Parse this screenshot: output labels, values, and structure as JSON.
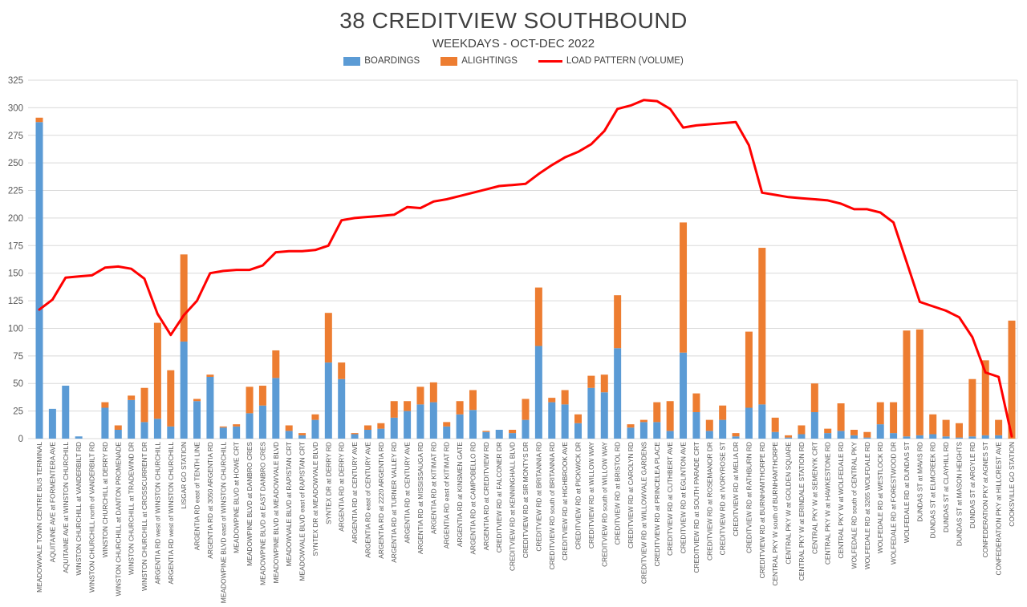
{
  "chart": {
    "title": "38 CREDITVIEW SOUTHBOUND",
    "subtitle": "WEEKDAYS - OCT-DEC 2022",
    "legend": [
      {
        "label": "BOARDINGS",
        "color": "#5B9BD5",
        "swatch": "box"
      },
      {
        "label": "ALIGHTINGS",
        "color": "#ED7D31",
        "swatch": "box"
      },
      {
        "label": "LOAD PATTERN (VOLUME)",
        "color": "#FF0000",
        "swatch": "line"
      }
    ]
  },
  "chart_data": {
    "type": "bar",
    "stacked": true,
    "title": "38 CREDITVIEW SOUTHBOUND",
    "subtitle": "WEEKDAYS - OCT-DEC 2022",
    "xlabel": "",
    "ylabel": "",
    "ylim": [
      0,
      325
    ],
    "ytick_step": 25,
    "grid": true,
    "legend_position": "top",
    "colors": {
      "boardings": "#5B9BD5",
      "alightings": "#ED7D31",
      "load": "#FF0000",
      "gridline": "#D9D9D9",
      "axis_text": "#595959"
    },
    "categories": [
      "MEADOWVALE TOWN CENTRE BUS TERMINAL",
      "AQUITAINE AVE at FORMENTERA AVE",
      "AQUITAINE AVE at WINSTON CHURCHILL",
      "WINSTON CHURCHILL at VANDERBILT RD",
      "WINSTON CHURCHILL north of VANDERBILT RD",
      "WINSTON CHURCHILL at DERRY RD",
      "WINSTON CHURCHILL at DANTON PROMENADE",
      "WINSTON CHURCHILL at TRADEWIND DR",
      "WINSTON CHURCHILL at CROSSCURRENT DR",
      "ARGENTIA RD west of WINSTON CHURCHILL",
      "ARGENTIA RD west of WINSTON CHURCHILL",
      "LISGAR GO STATION",
      "ARGENTIA RD east of TENTH LINE",
      "ARGENTIA RD at 3050 ARGENTIA RD",
      "MEADOWPINE BLVD east of WINSTON CHURCHILL",
      "MEADOWPINE BLVD at HOWE CRT",
      "MEADOWPINE BLVD at DANBRO CRES",
      "MEADOWPINE BLVD at EAST DANBRO CRES",
      "MEADOWPINE BLVD at MEADOWVALE BLVD",
      "MEADOWVALE BLVD at RAPISTAN CRT",
      "MEADOWVALE BLVD east of RAPISTAN CRT",
      "SYNTEX DR at MEADOWVALE BLVD",
      "SYNTEX DR at DERRY RD",
      "ARGENTIA RD at DERRY RD",
      "ARGENTIA RD at CENTURY AVE",
      "ARGENTIA RD east of CENTURY AVE",
      "ARGENTIA RD at 2220 ARGENTIA RD",
      "ARGENTIA RD at TURNER VALLEY RD",
      "ARGENTIA RD at CENTURY AVE",
      "ARGENTIA RD at MISSISSAUGA RD",
      "ARGENTIA RD at KITIMAT RD",
      "ARGENTIA RD east of KITIMAT RD",
      "ARGENTIA RD at KINSMEN GATE",
      "ARGENTIA RD at CAMPOBELLO RD",
      "ARGENTIA RD at CREDITVIEW RD",
      "CREDITVIEW RD at FALCONER DR",
      "CREDITVIEW RD at KENNINGHALL BLVD",
      "CREDITVIEW RD at SIR MONTYS DR",
      "CREDITVIEW RD at BRITANNIA RD",
      "CREDITVIEW RD south of BRITANNIA RD",
      "CREDITVIEW RD at HIGHBROOK AVE",
      "CREDITVIEW RD at PICKWICK DR",
      "CREDITVIEW RD at WILLOW WAY",
      "CREDITVIEW RD south of WILLOW WAY",
      "CREDITVIEW RD at BRISTOL RD",
      "CREDITVIEW RD at CAROLYN RD",
      "CREDITVIEW RD at WILLOWVALE GARDENS",
      "CREDITVIEW RD at PRINCELEA PLACE",
      "CREDITVIEW RD at CUTHBERT AVE",
      "CREDITVIEW RD at EGLINTON AVE",
      "CREDITVIEW RD at SOUTH PARADE CRT",
      "CREDITVIEW RD at ROSEMANOR DR",
      "CREDITVIEW RD at IVORYROSE ST",
      "CREDITVIEW RD at MELIA DR",
      "CREDITVIEW RD at RATHBURN RD",
      "CREDITVIEW RD at BURNHAMTHORPE RD",
      "CENTRAL PKY W south of BURNHAMTHORPE",
      "CENTRAL PKY W at GOLDEN SQUARE",
      "CENTRAL PKY W at ERINDALE STATION RD",
      "CENTRAL PKY W at SEMENYK CRT",
      "CENTRAL PKY W at HAWKESTONE RD",
      "CENTRAL PKY W at WOLFEDALE RD",
      "WOLFEDALE RD south of CENTRAL PKY",
      "WOLFEDALE RD at 3265 WOLFDALE RD",
      "WOLFEDALE RD at WESTLOCK RD",
      "WOLFEDALE RD at FORESTWOOD DR",
      "WOLFEDALE RD at DUNDAS ST",
      "DUNDAS ST at MAVIS RD",
      "DUNDAS ST at ELMCREEK RD",
      "DUNDAS ST at CLAYHILL RD",
      "DUNDAS ST at MASON HEIGHTS",
      "DUNDAS ST at ARGYLE RD",
      "CONFEDERATION PKY at AGNES ST",
      "CONFEDERATION PKY at HILLCREST AVE",
      "COOKSVILLE GO STATION"
    ],
    "series": [
      {
        "name": "BOARDINGS",
        "type": "bar",
        "color": "#5B9BD5",
        "values": [
          287,
          27,
          48,
          2,
          0,
          28,
          8,
          35,
          15,
          18,
          11,
          88,
          34,
          56,
          10,
          11,
          23,
          30,
          55,
          7,
          3,
          17,
          69,
          54,
          4,
          8,
          9,
          19,
          25,
          31,
          33,
          11,
          22,
          26,
          6,
          8,
          5,
          17,
          84,
          33,
          31,
          14,
          46,
          42,
          82,
          10,
          15,
          15,
          7,
          78,
          24,
          7,
          17,
          2,
          28,
          31,
          6,
          1,
          4,
          24,
          5,
          7,
          3,
          1,
          13,
          5,
          2,
          3,
          4,
          2,
          1,
          2,
          3,
          3,
          0
        ]
      },
      {
        "name": "ALIGHTINGS",
        "type": "bar",
        "color": "#ED7D31",
        "values": [
          4,
          0,
          0,
          0,
          0,
          5,
          4,
          4,
          31,
          87,
          51,
          79,
          2,
          2,
          1,
          2,
          24,
          18,
          25,
          5,
          2,
          5,
          45,
          15,
          1,
          4,
          5,
          15,
          9,
          16,
          18,
          4,
          12,
          18,
          1,
          0,
          3,
          19,
          53,
          4,
          13,
          8,
          11,
          16,
          48,
          3,
          2,
          18,
          27,
          118,
          17,
          10,
          13,
          3,
          69,
          142,
          13,
          2,
          8,
          26,
          4,
          25,
          5,
          5,
          20,
          28,
          96,
          96,
          18,
          15,
          13,
          52,
          68,
          14,
          107
        ]
      },
      {
        "name": "LOAD PATTERN (VOLUME)",
        "type": "line",
        "color": "#FF0000",
        "values": [
          117,
          126,
          146,
          147,
          148,
          155,
          156,
          154,
          145,
          113,
          94,
          112,
          125,
          150,
          152,
          153,
          153,
          157,
          169,
          170,
          170,
          171,
          175,
          198,
          200,
          201,
          202,
          203,
          210,
          209,
          215,
          217,
          220,
          223,
          226,
          229,
          230,
          231,
          240,
          248,
          255,
          260,
          267,
          279,
          299,
          302,
          307,
          306,
          299,
          282,
          284,
          285,
          286,
          287,
          266,
          223,
          221,
          219,
          218,
          217,
          216,
          213,
          208,
          208,
          205,
          196,
          160,
          124,
          120,
          116,
          110,
          92,
          60,
          56,
          2
        ]
      }
    ],
    "yticks": [
      0,
      25,
      50,
      75,
      100,
      125,
      150,
      175,
      200,
      225,
      250,
      275,
      300,
      325
    ]
  }
}
